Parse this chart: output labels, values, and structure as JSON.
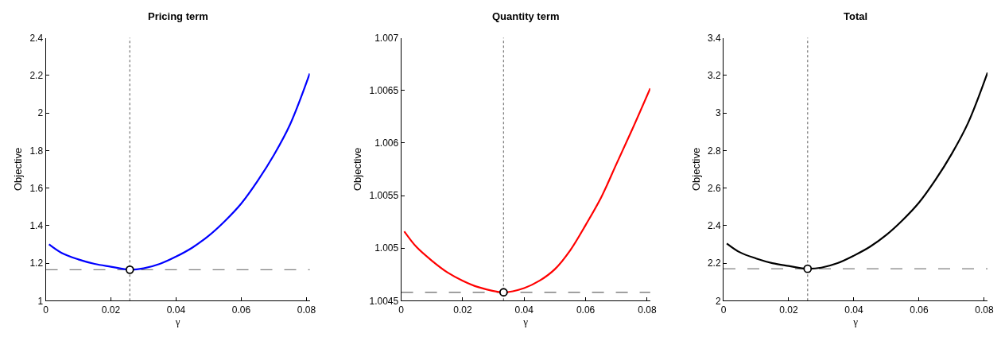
{
  "chart_data": [
    {
      "type": "line",
      "title": "Pricing term",
      "xlabel": "γ",
      "ylabel": "Objective",
      "xlim": [
        0,
        0.081
      ],
      "ylim": [
        1,
        2.4
      ],
      "xticks": [
        0,
        0.02,
        0.04,
        0.06,
        0.08
      ],
      "yticks": [
        1,
        1.2,
        1.4,
        1.6,
        1.8,
        2,
        2.2,
        2.4
      ],
      "series": [
        {
          "color": "#0000ff",
          "x": [
            0.001,
            0.005,
            0.01,
            0.015,
            0.02,
            0.0258,
            0.03,
            0.035,
            0.04,
            0.045,
            0.05,
            0.055,
            0.06,
            0.065,
            0.07,
            0.075,
            0.081
          ],
          "values": [
            1.3,
            1.253,
            1.22,
            1.196,
            1.181,
            1.165,
            1.172,
            1.196,
            1.235,
            1.283,
            1.346,
            1.425,
            1.518,
            1.638,
            1.776,
            1.94,
            2.21
          ],
          "marker": "none",
          "line_style": "solid"
        },
        {
          "type": "scatter",
          "color": "#000000",
          "x": [
            0.0258
          ],
          "values": [
            1.165
          ],
          "marker": "circle"
        }
      ],
      "ref_lines": [
        {
          "axis": "x",
          "value": 0.0258,
          "color": "#808080",
          "line_style": "dotted"
        },
        {
          "axis": "y",
          "value": 1.165,
          "color": "#808080",
          "line_style": "dashed"
        }
      ]
    },
    {
      "type": "line",
      "title": "Quantity term",
      "xlabel": "γ",
      "ylabel": "Objective",
      "xlim": [
        0,
        0.081
      ],
      "ylim": [
        1.0045,
        1.007
      ],
      "xticks": [
        0,
        0.02,
        0.04,
        0.06,
        0.08
      ],
      "yticks": [
        1.0045,
        1.005,
        1.0055,
        1.006,
        1.0065,
        1.007
      ],
      "series": [
        {
          "color": "#ff0000",
          "x": [
            0.001,
            0.005,
            0.01,
            0.015,
            0.02,
            0.025,
            0.0333,
            0.04,
            0.045,
            0.05,
            0.055,
            0.06,
            0.065,
            0.07,
            0.075,
            0.081
          ],
          "values": [
            1.00516,
            1.00501,
            1.00488,
            1.00477,
            1.00469,
            1.00463,
            1.00458,
            1.00462,
            1.00469,
            1.0048,
            1.00498,
            1.00522,
            1.00548,
            1.0058,
            1.00612,
            1.00652
          ],
          "marker": "none",
          "line_style": "solid"
        },
        {
          "type": "scatter",
          "color": "#000000",
          "x": [
            0.0333
          ],
          "values": [
            1.00458
          ],
          "marker": "circle"
        }
      ],
      "ref_lines": [
        {
          "axis": "x",
          "value": 0.0333,
          "color": "#808080",
          "line_style": "dotted"
        },
        {
          "axis": "y",
          "value": 1.00458,
          "color": "#808080",
          "line_style": "dashed"
        }
      ]
    },
    {
      "type": "line",
      "title": "Total",
      "xlabel": "γ",
      "ylabel": "Objective",
      "xlim": [
        0,
        0.081
      ],
      "ylim": [
        2,
        3.4
      ],
      "xticks": [
        0,
        0.02,
        0.04,
        0.06,
        0.08
      ],
      "yticks": [
        2,
        2.2,
        2.4,
        2.6,
        2.8,
        3,
        3.2,
        3.4
      ],
      "series": [
        {
          "color": "#000000",
          "x": [
            0.001,
            0.005,
            0.01,
            0.015,
            0.02,
            0.0258,
            0.03,
            0.035,
            0.04,
            0.045,
            0.05,
            0.055,
            0.06,
            0.065,
            0.07,
            0.075,
            0.081
          ],
          "values": [
            2.305,
            2.258,
            2.225,
            2.2,
            2.185,
            2.17,
            2.176,
            2.2,
            2.24,
            2.288,
            2.351,
            2.43,
            2.523,
            2.643,
            2.782,
            2.946,
            3.215
          ],
          "marker": "none",
          "line_style": "solid"
        },
        {
          "type": "scatter",
          "color": "#000000",
          "x": [
            0.0258
          ],
          "values": [
            2.17
          ],
          "marker": "circle"
        }
      ],
      "ref_lines": [
        {
          "axis": "x",
          "value": 0.0258,
          "color": "#808080",
          "line_style": "dotted"
        },
        {
          "axis": "y",
          "value": 2.17,
          "color": "#808080",
          "line_style": "dashed"
        }
      ]
    }
  ]
}
